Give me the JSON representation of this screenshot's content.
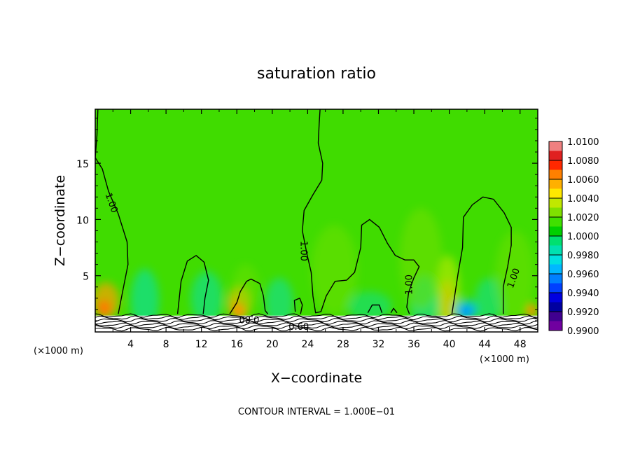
{
  "chart_data": {
    "type": "heatmap",
    "title": "saturation ratio",
    "xlabel": "X−coordinate",
    "ylabel": "Z−coordinate",
    "x_unit_left": "(×1000 m)",
    "x_unit_right": "(×1000 m)",
    "footer": "CONTOUR INTERVAL = 1.000E−01",
    "xlim": [
      0,
      50
    ],
    "ylim": [
      0,
      19.8
    ],
    "x_ticks": [
      4,
      8,
      12,
      16,
      20,
      24,
      28,
      32,
      36,
      40,
      44,
      48
    ],
    "y_ticks": [
      5,
      10,
      15
    ],
    "x_tick_labels": [
      "4",
      "8",
      "12",
      "16",
      "20",
      "24",
      "28",
      "32",
      "36",
      "40",
      "44",
      "48"
    ],
    "y_tick_labels": [
      "5",
      "10",
      "15"
    ],
    "colorbar": {
      "labels": [
        "1.0100",
        "1.0080",
        "1.0060",
        "1.0040",
        "1.0020",
        "1.0000",
        "0.9980",
        "0.9960",
        "0.9940",
        "0.9920",
        "0.9900"
      ],
      "colors": [
        "#f08080",
        "#e02020",
        "#ff2800",
        "#ff8000",
        "#ffb000",
        "#ffe800",
        "#c0e800",
        "#80e000",
        "#40e000",
        "#00d000",
        "#00e070",
        "#00e0b0",
        "#00e0e0",
        "#00b8ff",
        "#0080ff",
        "#0040ff",
        "#0000e0",
        "#0000a0",
        "#400090",
        "#7000a0"
      ]
    },
    "background_value": 1.0,
    "contour_labels": [
      {
        "text": "1.00",
        "x": 1.9,
        "z": 11.5,
        "rot": 70
      },
      {
        "text": "1.00",
        "x": 23.6,
        "z": 7.2,
        "rot": 90
      },
      {
        "text": "1.00",
        "x": 35.4,
        "z": 4.2,
        "rot": -90
      },
      {
        "text": "1.00",
        "x": 47.2,
        "z": 4.8,
        "rot": -70
      },
      {
        "text": "0.80",
        "x": 17.4,
        "z": 1.1,
        "rot": 180
      },
      {
        "text": "0.60",
        "x": 23.0,
        "z": 0.5,
        "rot": 0
      }
    ],
    "contours_1_00": [
      [
        [
          0.3,
          19.8
        ],
        [
          0.2,
          17.5
        ],
        [
          0.0,
          15.5
        ],
        [
          0.8,
          14.5
        ],
        [
          1.5,
          12.5
        ],
        [
          2.6,
          10.5
        ],
        [
          3.6,
          8.0
        ],
        [
          3.7,
          6.0
        ],
        [
          3.0,
          3.2
        ],
        [
          2.6,
          1.6
        ]
      ],
      [
        [
          9.3,
          1.6
        ],
        [
          9.7,
          4.5
        ],
        [
          10.4,
          6.3
        ],
        [
          11.4,
          6.8
        ],
        [
          12.3,
          6.2
        ],
        [
          12.8,
          4.6
        ],
        [
          12.4,
          3.0
        ],
        [
          12.2,
          1.6
        ]
      ],
      [
        [
          15.2,
          1.6
        ],
        [
          16.0,
          2.6
        ],
        [
          16.4,
          3.6
        ],
        [
          17.1,
          4.5
        ],
        [
          17.6,
          4.7
        ],
        [
          18.6,
          4.3
        ],
        [
          19.0,
          3.2
        ],
        [
          19.2,
          1.9
        ],
        [
          19.5,
          1.6
        ]
      ],
      [
        [
          25.4,
          19.8
        ],
        [
          25.3,
          18.5
        ],
        [
          25.2,
          16.8
        ],
        [
          25.7,
          15.0
        ],
        [
          25.6,
          13.5
        ],
        [
          24.6,
          12.2
        ],
        [
          23.6,
          10.8
        ],
        [
          23.4,
          9.0
        ],
        [
          23.9,
          7.0
        ],
        [
          24.4,
          5.3
        ],
        [
          24.6,
          3.2
        ],
        [
          24.9,
          1.7
        ],
        [
          25.5,
          1.8
        ],
        [
          26.1,
          3.2
        ],
        [
          27.1,
          4.5
        ],
        [
          28.4,
          4.6
        ],
        [
          29.3,
          5.3
        ],
        [
          30.0,
          7.5
        ],
        [
          30.1,
          9.5
        ],
        [
          31.0,
          10.0
        ],
        [
          32.1,
          9.3
        ],
        [
          33.0,
          7.9
        ],
        [
          33.9,
          6.8
        ],
        [
          35.0,
          6.4
        ],
        [
          36.0,
          6.4
        ],
        [
          36.6,
          5.8
        ],
        [
          36.0,
          4.8
        ],
        [
          35.4,
          3.5
        ],
        [
          35.2,
          2.2
        ],
        [
          35.5,
          1.6
        ]
      ],
      [
        [
          40.3,
          1.6
        ],
        [
          41.0,
          5.2
        ],
        [
          41.5,
          7.5
        ],
        [
          41.6,
          10.2
        ],
        [
          42.6,
          11.3
        ],
        [
          43.8,
          12.0
        ],
        [
          45.0,
          11.8
        ],
        [
          46.2,
          10.6
        ],
        [
          47.0,
          9.3
        ],
        [
          47.0,
          7.7
        ],
        [
          46.6,
          5.8
        ],
        [
          46.1,
          4.0
        ],
        [
          46.1,
          1.6
        ]
      ],
      [
        [
          22.6,
          1.8
        ],
        [
          22.5,
          2.8
        ],
        [
          23.1,
          3.0
        ],
        [
          23.4,
          2.4
        ],
        [
          23.2,
          1.6
        ]
      ],
      [
        [
          30.8,
          1.7
        ],
        [
          31.3,
          2.4
        ],
        [
          32.1,
          2.4
        ],
        [
          32.4,
          1.7
        ]
      ],
      [
        [
          33.4,
          1.7
        ],
        [
          33.7,
          2.1
        ],
        [
          34.1,
          1.7
        ]
      ]
    ],
    "blobs": [
      {
        "x": 39.8,
        "z": 2.4,
        "rx": 0.6,
        "rz": 1.1,
        "c": "#ff2000"
      },
      {
        "x": 39.8,
        "z": 2.7,
        "rx": 0.9,
        "rz": 2.0,
        "c": "#ff9000",
        "o": 0.85
      },
      {
        "x": 39.8,
        "z": 3.6,
        "rx": 1.4,
        "rz": 3.2,
        "c": "#a8e800",
        "o": 0.75
      },
      {
        "x": 1.0,
        "z": 2.1,
        "rx": 0.8,
        "rz": 0.7,
        "c": "#ff2000"
      },
      {
        "x": 1.2,
        "z": 2.8,
        "rx": 1.5,
        "rz": 1.6,
        "c": "#ffa000",
        "o": 0.7
      },
      {
        "x": 16.2,
        "z": 2.0,
        "rx": 0.7,
        "rz": 0.7,
        "c": "#ff3000"
      },
      {
        "x": 16.3,
        "z": 2.6,
        "rx": 1.3,
        "rz": 1.5,
        "c": "#ffb800",
        "o": 0.7
      },
      {
        "x": 49.3,
        "z": 1.9,
        "rx": 0.6,
        "rz": 0.6,
        "c": "#ff9000"
      },
      {
        "x": 41.9,
        "z": 1.8,
        "rx": 0.9,
        "rz": 0.5,
        "c": "#0030ff"
      },
      {
        "x": 41.9,
        "z": 2.0,
        "rx": 1.4,
        "rz": 0.9,
        "c": "#00c8ff",
        "o": 0.7
      },
      {
        "x": 5.6,
        "z": 2.8,
        "rx": 1.6,
        "rz": 2.8,
        "c": "#00e0c0",
        "o": 0.55
      },
      {
        "x": 12.6,
        "z": 3.0,
        "rx": 1.8,
        "rz": 2.4,
        "c": "#00e0c0",
        "o": 0.5
      },
      {
        "x": 20.8,
        "z": 2.6,
        "rx": 1.6,
        "rz": 2.2,
        "c": "#00e0d0",
        "o": 0.45
      },
      {
        "x": 37.2,
        "z": 2.6,
        "rx": 1.6,
        "rz": 2.4,
        "c": "#00e0c0",
        "o": 0.5
      },
      {
        "x": 31.0,
        "z": 2.3,
        "rx": 2.5,
        "rz": 1.3,
        "c": "#00e0b0",
        "o": 0.45
      },
      {
        "x": 44.5,
        "z": 2.8,
        "rx": 1.6,
        "rz": 2.0,
        "c": "#00e0c0",
        "o": 0.45
      },
      {
        "x": 27.0,
        "z": 5.5,
        "rx": 2.6,
        "rz": 4.0,
        "c": "#78e000",
        "o": 0.45
      },
      {
        "x": 36.8,
        "z": 6.5,
        "rx": 2.4,
        "rz": 4.5,
        "c": "#78e000",
        "o": 0.5
      },
      {
        "x": 47.4,
        "z": 5.0,
        "rx": 2.2,
        "rz": 4.0,
        "c": "#78e000",
        "o": 0.45
      },
      {
        "x": 17.0,
        "z": 4.0,
        "rx": 1.5,
        "rz": 2.0,
        "c": "#70e000",
        "o": 0.45
      }
    ]
  }
}
